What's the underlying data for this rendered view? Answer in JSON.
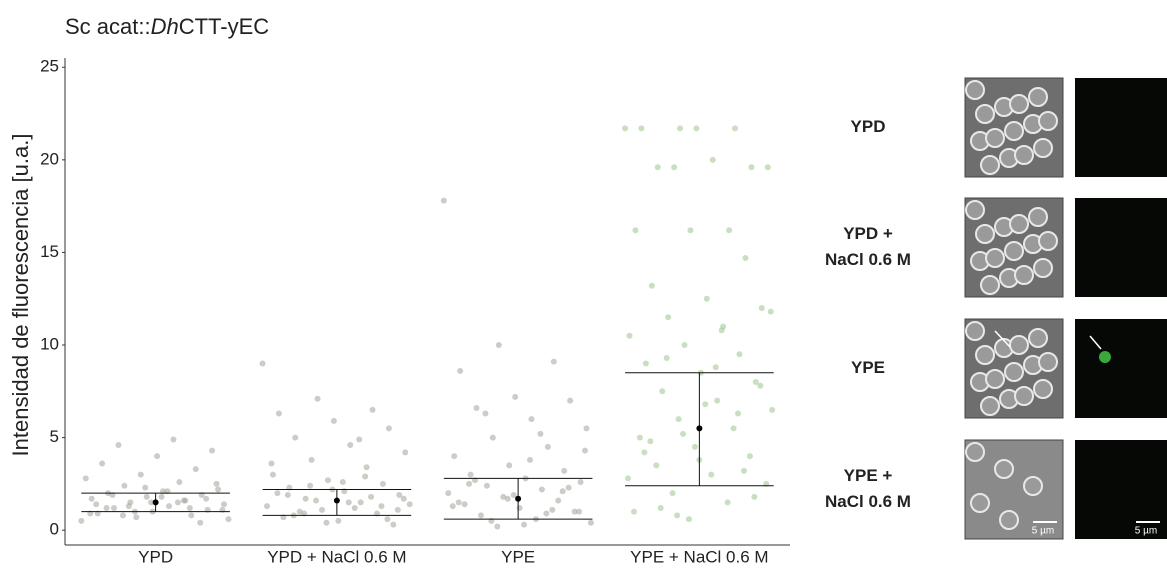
{
  "chart_data": {
    "type": "strip",
    "title": {
      "prefix": "Sc acat::",
      "italic": "Dh",
      "suffix": "CTT-yEC"
    },
    "y_label": "Intensidad de fluorescencia [u.a.]",
    "categories": [
      "YPD",
      "YPD + NaCl 0.6 M",
      "YPE",
      "YPE + NaCl 0.6 M"
    ],
    "ylim": [
      -0.8,
      25.5
    ],
    "yticks": [
      0,
      5,
      10,
      15,
      20,
      25
    ],
    "mean": [
      1.5,
      1.6,
      1.7,
      5.5
    ],
    "lower": [
      1.0,
      0.8,
      0.6,
      2.4
    ],
    "upper": [
      2.0,
      2.2,
      2.8,
      8.5
    ],
    "colors": [
      "#9fa597",
      "#9fa597",
      "#9fa597",
      "#9cc48c"
    ],
    "points": [
      [
        0.5,
        0.7,
        0.8,
        0.9,
        1.0,
        1.1,
        1.2,
        1.3,
        1.4,
        1.5,
        1.6,
        1.7,
        1.8,
        1.9,
        2.0,
        2.1,
        2.2,
        2.4,
        2.6,
        2.8,
        3.0,
        3.3,
        3.6,
        4.0,
        4.3,
        4.6,
        4.9,
        0.6,
        1.0,
        1.2,
        1.4,
        1.5,
        1.7,
        1.9,
        2.1,
        1.1,
        1.3,
        1.6,
        0.9,
        2.3,
        0.4,
        1.2,
        1.8,
        2.5,
        0.8,
        1.5
      ],
      [
        9.0,
        7.1,
        6.5,
        6.3,
        5.9,
        5.5,
        5.0,
        4.6,
        4.2,
        3.8,
        3.4,
        3.0,
        2.7,
        2.5,
        2.3,
        2.1,
        1.9,
        1.7,
        1.5,
        1.3,
        1.1,
        0.9,
        0.7,
        0.5,
        0.3,
        1.0,
        1.2,
        1.4,
        1.6,
        1.8,
        2.0,
        2.2,
        0.6,
        0.8,
        1.5,
        1.7,
        2.4,
        2.9,
        3.6,
        0.4,
        1.3,
        1.9,
        2.6,
        1.1,
        0.9,
        4.9
      ],
      [
        17.8,
        10.0,
        9.1,
        8.6,
        7.2,
        7.0,
        6.6,
        6.0,
        5.5,
        5.0,
        4.5,
        4.0,
        3.5,
        3.2,
        3.0,
        2.8,
        2.6,
        2.4,
        2.2,
        2.0,
        1.8,
        1.6,
        1.4,
        1.2,
        1.0,
        0.8,
        0.6,
        0.4,
        0.2,
        1.1,
        1.5,
        1.9,
        2.3,
        2.7,
        3.8,
        4.3,
        0.5,
        0.9,
        1.3,
        1.7,
        2.1,
        2.5,
        0.3,
        1.0,
        6.3,
        5.2
      ],
      [
        21.7,
        21.7,
        21.7,
        21.7,
        21.7,
        19.6,
        19.6,
        20.0,
        19.6,
        19.6,
        16.2,
        16.2,
        16.2,
        14.7,
        13.2,
        12.5,
        12.0,
        11.5,
        11.0,
        10.5,
        10.0,
        9.5,
        9.0,
        8.5,
        8.0,
        7.5,
        7.0,
        6.5,
        6.0,
        5.5,
        5.0,
        4.5,
        4.0,
        3.5,
        3.0,
        2.5,
        2.0,
        1.5,
        1.0,
        0.6,
        3.2,
        4.8,
        6.8,
        7.8,
        9.3,
        10.8,
        2.8,
        5.2,
        6.3,
        4.2,
        3.8,
        1.8,
        1.2,
        8.8,
        11.8,
        0.8
      ]
    ]
  },
  "panels": {
    "rows": [
      "YPD",
      "YPD +\nNaCl 0.6 M",
      "YPE",
      "YPE +\nNaCl 0.6 M"
    ],
    "scale_bar": "5 µm"
  }
}
